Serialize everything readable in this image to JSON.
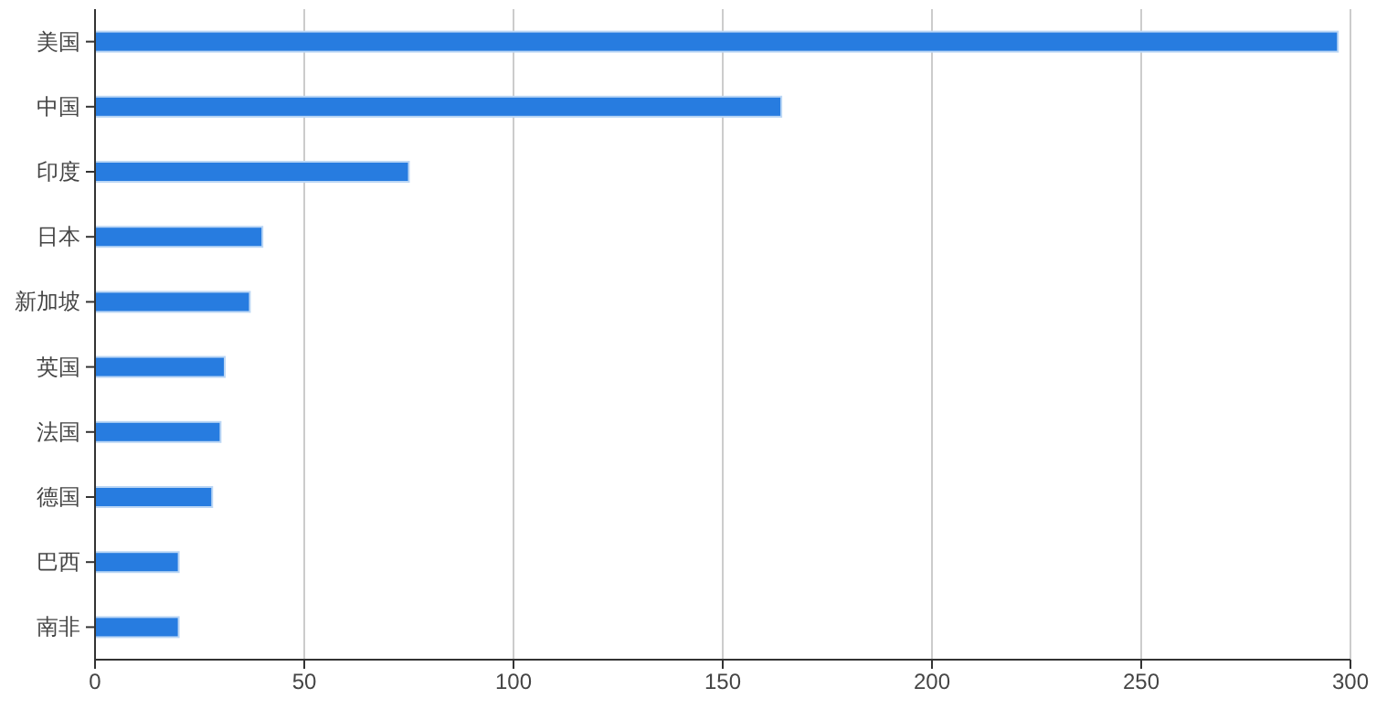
{
  "chart_data": {
    "type": "bar",
    "orientation": "horizontal",
    "categories": [
      "美国",
      "中国",
      "印度",
      "日本",
      "新加坡",
      "英国",
      "法国",
      "德国",
      "巴西",
      "南非"
    ],
    "values": [
      297,
      164,
      75,
      40,
      37,
      31,
      30,
      28,
      20,
      20
    ],
    "color": "#277ce0",
    "xlim": [
      0,
      300
    ],
    "xticks": [
      0,
      50,
      100,
      150,
      200,
      250,
      300
    ],
    "grid": "x"
  }
}
